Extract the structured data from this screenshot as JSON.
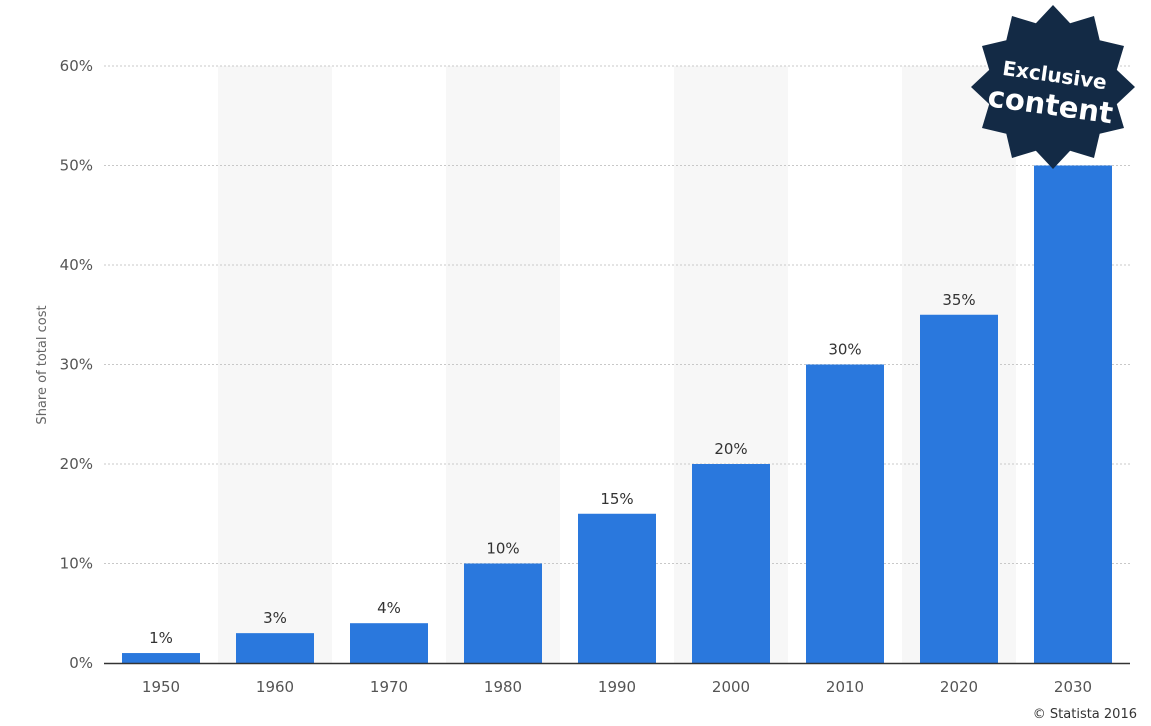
{
  "chart_data": {
    "type": "bar",
    "categories": [
      "1950",
      "1960",
      "1970",
      "1980",
      "1990",
      "2000",
      "2010",
      "2020",
      "2030"
    ],
    "values": [
      1,
      3,
      4,
      10,
      15,
      20,
      30,
      35,
      50
    ],
    "data_labels": [
      "1%",
      "3%",
      "4%",
      "10%",
      "15%",
      "20%",
      "30%",
      "35%",
      ""
    ],
    "y_ticks": [
      "0%",
      "10%",
      "20%",
      "30%",
      "40%",
      "50%",
      "60%"
    ],
    "ylabel": "Share of total cost",
    "xlabel": "",
    "ylim": [
      0,
      60
    ],
    "grid": true,
    "bar_color": "#2a78dd",
    "band_color": "#f7f7f7"
  },
  "badge": {
    "line1": "Exclusive",
    "line2": "content",
    "color": "#132a45"
  },
  "credit": "© Statista 2016"
}
